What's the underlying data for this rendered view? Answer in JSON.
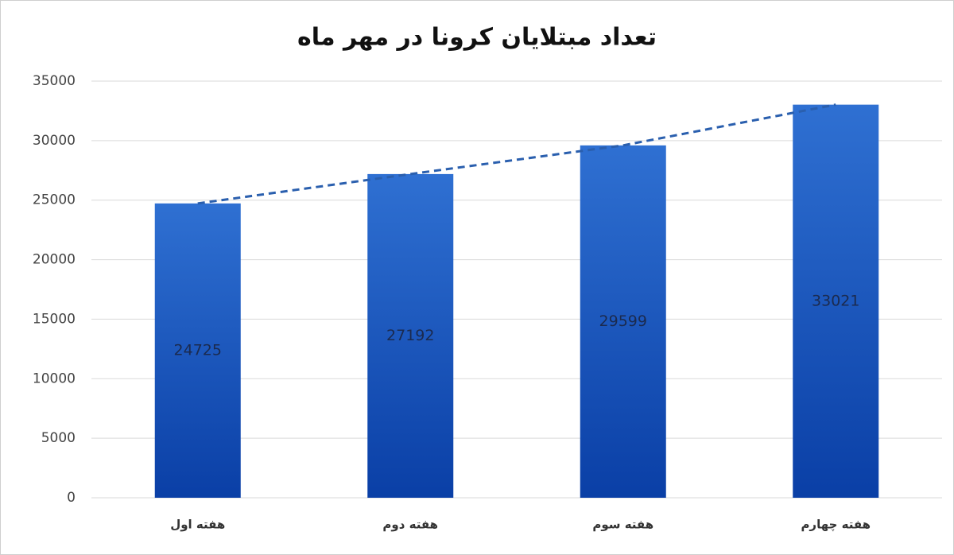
{
  "chart_data": {
    "type": "bar",
    "title": "تعداد مبتلایان کرونا در مهر ماه",
    "categories": [
      "هفته اول",
      "هفته دوم",
      "هفته سوم",
      "هفته چهارم"
    ],
    "values": [
      24725,
      27192,
      29599,
      33021
    ],
    "color": "#1f5cc4",
    "ylim": [
      0,
      35000
    ],
    "yticks": [
      0,
      5000,
      10000,
      15000,
      20000,
      25000,
      30000,
      35000
    ],
    "grid": true,
    "trendline": true,
    "data_labels": true
  }
}
